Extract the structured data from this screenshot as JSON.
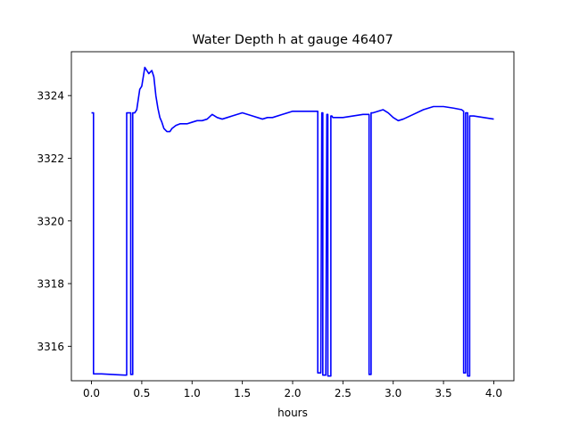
{
  "chart_data": {
    "type": "line",
    "title": "Water Depth h at gauge 46407",
    "xlabel": "hours",
    "ylabel": "",
    "xlim": [
      -0.2,
      4.2
    ],
    "ylim": [
      3314.9,
      3325.4
    ],
    "xticks": [
      0.0,
      0.5,
      1.0,
      1.5,
      2.0,
      2.5,
      3.0,
      3.5,
      4.0
    ],
    "xtick_labels": [
      "0.0",
      "0.5",
      "1.0",
      "1.5",
      "2.0",
      "2.5",
      "3.0",
      "3.5",
      "4.0"
    ],
    "yticks": [
      3316,
      3318,
      3320,
      3322,
      3324
    ],
    "ytick_labels": [
      "3316",
      "3318",
      "3320",
      "3322",
      "3324"
    ],
    "grid": false,
    "series": [
      {
        "color": "#0000ff",
        "x": [
          0.0,
          0.02,
          0.02,
          0.1,
          0.2,
          0.33,
          0.35,
          0.35,
          0.37,
          0.39,
          0.39,
          0.4,
          0.41,
          0.41,
          0.43,
          0.45,
          0.48,
          0.5,
          0.53,
          0.57,
          0.6,
          0.62,
          0.64,
          0.66,
          0.68,
          0.7,
          0.72,
          0.75,
          0.78,
          0.8,
          0.84,
          0.88,
          0.9,
          0.95,
          1.0,
          1.05,
          1.1,
          1.15,
          1.2,
          1.25,
          1.3,
          1.35,
          1.4,
          1.45,
          1.5,
          1.6,
          1.7,
          1.75,
          1.8,
          1.9,
          2.0,
          2.1,
          2.2,
          2.25,
          2.25,
          2.28,
          2.29,
          2.3,
          2.3,
          2.33,
          2.34,
          2.35,
          2.35,
          2.38,
          2.38,
          2.39,
          2.4,
          2.5,
          2.6,
          2.7,
          2.76,
          2.76,
          2.78,
          2.78,
          2.8,
          2.9,
          2.95,
          3.0,
          3.05,
          3.1,
          3.2,
          3.3,
          3.4,
          3.5,
          3.6,
          3.68,
          3.7,
          3.7,
          3.72,
          3.72,
          3.74,
          3.74,
          3.76,
          3.76,
          3.8,
          3.9,
          4.0
        ],
        "y": [
          3323.45,
          3323.45,
          3315.12,
          3315.12,
          3315.1,
          3315.08,
          3315.08,
          3323.45,
          3323.45,
          3323.45,
          3315.1,
          3315.1,
          3315.1,
          3323.45,
          3323.45,
          3323.55,
          3324.2,
          3324.3,
          3324.9,
          3324.7,
          3324.8,
          3324.6,
          3324.0,
          3323.6,
          3323.3,
          3323.15,
          3322.95,
          3322.85,
          3322.85,
          3322.95,
          3323.05,
          3323.1,
          3323.1,
          3323.1,
          3323.15,
          3323.2,
          3323.2,
          3323.25,
          3323.4,
          3323.3,
          3323.25,
          3323.3,
          3323.35,
          3323.4,
          3323.45,
          3323.35,
          3323.25,
          3323.3,
          3323.3,
          3323.4,
          3323.5,
          3323.5,
          3323.5,
          3323.5,
          3315.15,
          3315.15,
          3323.45,
          3323.45,
          3315.08,
          3315.08,
          3323.4,
          3323.4,
          3315.05,
          3315.05,
          3323.35,
          3323.35,
          3323.3,
          3323.3,
          3323.35,
          3323.4,
          3323.4,
          3315.1,
          3315.1,
          3323.45,
          3323.45,
          3323.55,
          3323.45,
          3323.3,
          3323.2,
          3323.25,
          3323.4,
          3323.55,
          3323.65,
          3323.65,
          3323.6,
          3323.55,
          3323.5,
          3315.15,
          3315.15,
          3323.45,
          3323.45,
          3315.05,
          3315.05,
          3323.35,
          3323.35,
          3323.3,
          3323.25
        ]
      }
    ]
  }
}
